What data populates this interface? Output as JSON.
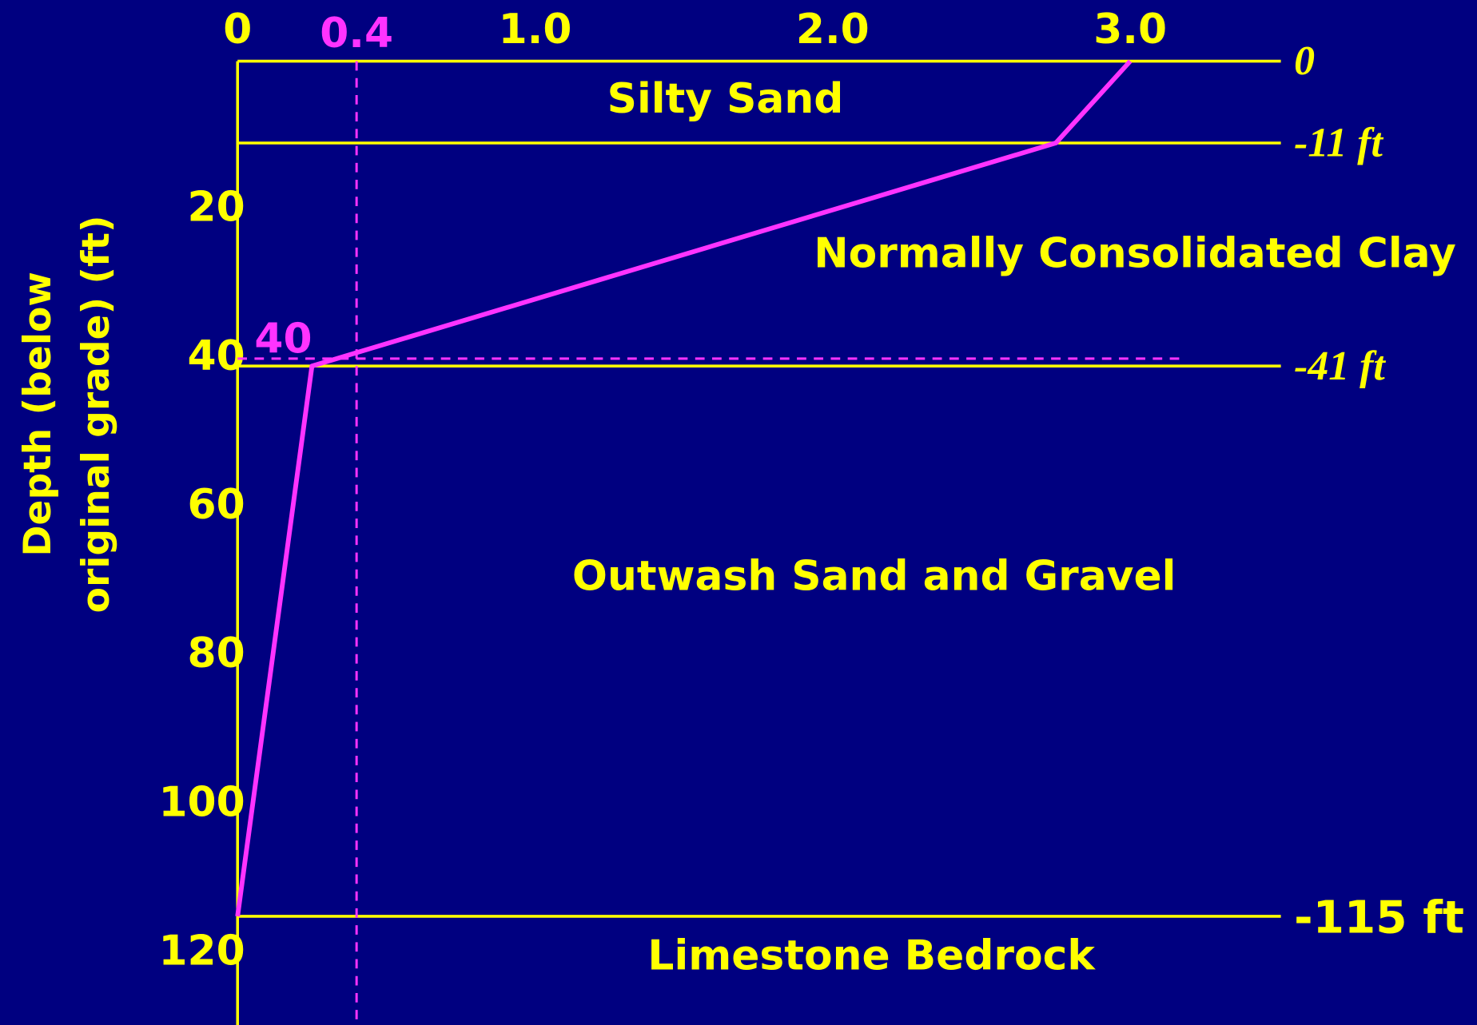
{
  "chart_data": {
    "type": "line",
    "ylabel_lines": [
      "Depth (below",
      "original grade) (ft)"
    ],
    "xlim": [
      0,
      3.5
    ],
    "ylim": [
      0,
      130
    ],
    "xticks": [
      0,
      {
        "value": 1,
        "label": "1.0"
      },
      {
        "value": 2,
        "label": "2.0"
      },
      {
        "value": 3,
        "label": "3.0"
      }
    ],
    "yticks": [
      20,
      40,
      60,
      80,
      100,
      120
    ],
    "axis_color": "#ffff00",
    "series": [
      {
        "color": "#ff33ff",
        "x": [
          3.0,
          2.75,
          0.25,
          0
        ],
        "values": [
          0,
          11,
          41,
          115
        ]
      }
    ],
    "boundaries": [
      {
        "value": 0,
        "label": "0"
      },
      {
        "value": 11,
        "label": "-11 ft"
      },
      {
        "value": 41,
        "label": "-41 ft"
      },
      {
        "value": 115,
        "label": "-115 ft"
      }
    ],
    "layers": [
      "Silty Sand",
      "Normally Consolidated Clay",
      "Outwash Sand and Gravel",
      "Limestone Bedrock"
    ],
    "reference": {
      "color": "#ff33ff",
      "x": {
        "value": 0.4,
        "label": "0.4"
      },
      "y": {
        "value": 40,
        "label": "40"
      }
    }
  }
}
